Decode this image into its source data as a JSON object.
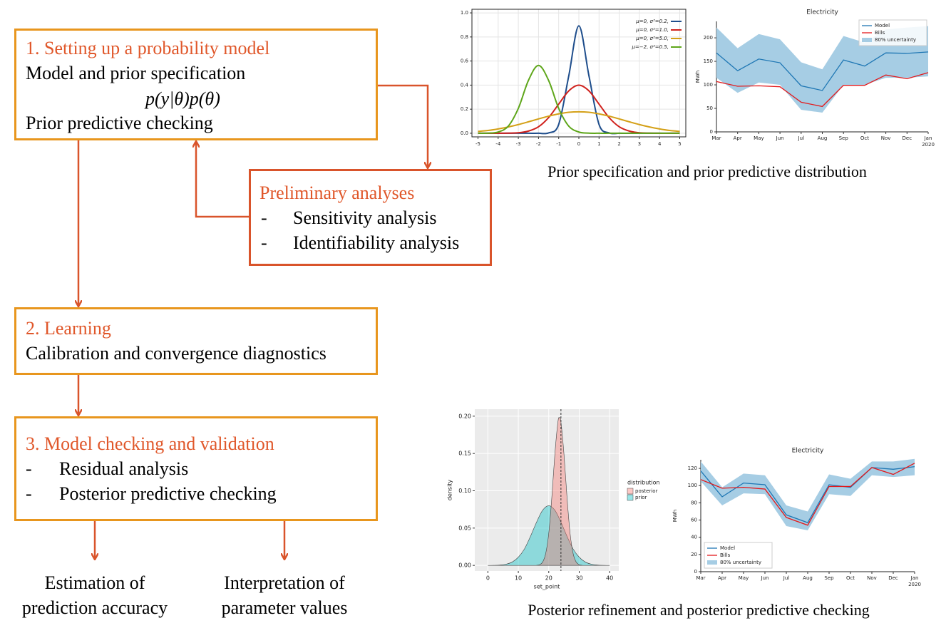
{
  "box1": {
    "title": "1. Setting up a probability model",
    "lines": [
      "Model and prior specification",
      "p(y|θ)p(θ)",
      "Prior predictive checking"
    ]
  },
  "preliminary": {
    "title": "Preliminary analyses",
    "bullet": "-",
    "items": [
      "Sensitivity analysis",
      "Identifiability analysis"
    ]
  },
  "box2": {
    "title": "2. Learning",
    "lines": [
      "Calibration and convergence diagnostics"
    ]
  },
  "box3": {
    "title": "3. Model checking and validation",
    "bullet": "-",
    "items": [
      "Residual analysis",
      "Posterior predictive checking"
    ]
  },
  "outputs": [
    {
      "lines": [
        "Estimation of",
        "prediction accuracy"
      ]
    },
    {
      "lines": [
        "Interpretation of",
        "parameter values"
      ]
    }
  ],
  "captions": [
    "Prior specification and prior predictive distribution",
    "Posterior refinement and posterior predictive checking"
  ],
  "charts": [
    {
      "type": "line",
      "x": [
        -5,
        -4.5,
        -4,
        -3.5,
        -3,
        -2.5,
        -2,
        -1.5,
        -1,
        -0.5,
        0,
        0.5,
        1,
        1.5,
        2,
        2.5,
        3,
        3.5,
        4,
        4.5,
        5
      ],
      "xlim": [
        -5.3,
        5.3
      ],
      "xticks": [
        -5,
        -4,
        -3,
        -2,
        -1,
        0,
        1,
        2,
        3,
        4,
        5
      ],
      "ylim": [
        -0.03,
        1.03
      ],
      "yticks": [
        {
          "value": 0,
          "label": "0.0"
        },
        {
          "value": 0.2,
          "label": "0.2"
        },
        {
          "value": 0.4,
          "label": "0.4"
        },
        {
          "value": 0.6,
          "label": "0.6"
        },
        {
          "value": 0.8,
          "label": "0.8"
        },
        {
          "value": 1,
          "label": "1.0"
        }
      ],
      "grid": true,
      "legend": "upper right",
      "series": [
        {
          "name": "μ=0,   σ²=0.2,",
          "color": "#1f4e8c",
          "values": [
            0,
            0,
            0,
            0,
            0,
            0,
            0,
            0.003,
            0.073,
            0.477,
            0.892,
            0.477,
            0.073,
            0.003,
            0,
            0,
            0,
            0,
            0,
            0,
            0
          ]
        },
        {
          "name": "μ=0,   σ²=1.0,",
          "color": "#d0211c",
          "values": [
            0,
            0,
            0,
            0.001,
            0.004,
            0.018,
            0.054,
            0.13,
            0.242,
            0.352,
            0.399,
            0.352,
            0.242,
            0.13,
            0.054,
            0.018,
            0.004,
            0.001,
            0,
            0,
            0
          ]
        },
        {
          "name": "μ=0,   σ²=5.0,",
          "color": "#d4a017",
          "values": [
            0.015,
            0.023,
            0.036,
            0.052,
            0.072,
            0.095,
            0.119,
            0.142,
            0.161,
            0.174,
            0.178,
            0.174,
            0.161,
            0.142,
            0.119,
            0.095,
            0.072,
            0.052,
            0.036,
            0.023,
            0.015
          ]
        },
        {
          "name": "μ=−2, σ²=0.5,",
          "color": "#5ea61a",
          "values": [
            0,
            0.001,
            0.01,
            0.059,
            0.207,
            0.439,
            0.564,
            0.439,
            0.207,
            0.059,
            0.01,
            0.001,
            0,
            0,
            0,
            0,
            0,
            0,
            0,
            0,
            0
          ]
        }
      ]
    },
    {
      "type": "band_line",
      "title": "Electricity",
      "categories": [
        "Mar",
        "Apr",
        "May",
        "Jun",
        "Jul",
        "Aug",
        "Sep",
        "Oct",
        "Nov",
        "Dec",
        "Jan"
      ],
      "year": "2020",
      "ylabel": "MWh",
      "ylim": [
        0,
        235
      ],
      "yticks": [
        0,
        50,
        100,
        150,
        200
      ],
      "grid": false,
      "legend": "upper right",
      "series": [
        {
          "name": "Model",
          "color": "#1f77b4",
          "values": [
            168,
            130,
            155,
            147,
            98,
            88,
            153,
            140,
            168,
            167,
            170
          ]
        },
        {
          "name": "Bills",
          "color": "#e31a1c",
          "values": [
            107,
            97,
            98,
            96,
            63,
            54,
            99,
            99,
            121,
            113,
            126
          ]
        }
      ],
      "band": {
        "name": "80% uncertainty",
        "color": "#a6cde4",
        "lower": [
          115,
          83,
          105,
          100,
          47,
          41,
          100,
          100,
          115,
          115,
          118
        ],
        "upper": [
          222,
          178,
          208,
          197,
          148,
          133,
          204,
          190,
          218,
          222,
          225
        ]
      }
    },
    {
      "type": "area",
      "xlabel": "set_point",
      "ylabel": "density",
      "xlim": [
        -4.3,
        43
      ],
      "xticks": [
        0,
        10,
        20,
        30,
        40
      ],
      "ylim": [
        -0.0075,
        0.2094
      ],
      "yticks": [
        {
          "value": 0,
          "label": "0.00"
        },
        {
          "value": 0.05,
          "label": "0.05"
        },
        {
          "value": 0.1,
          "label": "0.10"
        },
        {
          "value": 0.15,
          "label": "0.15"
        },
        {
          "value": 0.2,
          "label": "0.20"
        }
      ],
      "vline": 24,
      "grid": true,
      "legend": "right",
      "legend_title": "distribution",
      "series": [
        {
          "name": "posterior",
          "color": "#f8766d",
          "x": [
            16,
            17,
            18,
            19,
            20,
            21,
            22,
            23,
            23.5,
            24,
            25,
            26,
            27,
            28,
            29,
            30,
            31
          ],
          "values": [
            0.0001,
            0.001,
            0.0045,
            0.016,
            0.043,
            0.091,
            0.149,
            0.192,
            0.198,
            0.192,
            0.149,
            0.091,
            0.043,
            0.016,
            0.0045,
            0.001,
            0.0001
          ]
        },
        {
          "name": "prior",
          "color": "#00bfc4",
          "x": [
            0,
            2,
            4,
            6,
            8,
            10,
            12,
            14,
            16,
            18,
            20,
            22,
            24,
            26,
            28,
            30,
            32,
            34,
            36,
            38,
            40
          ],
          "values": [
            0,
            0.0001,
            0.0005,
            0.0016,
            0.0045,
            0.011,
            0.022,
            0.039,
            0.058,
            0.074,
            0.08,
            0.074,
            0.058,
            0.039,
            0.022,
            0.011,
            0.0045,
            0.0016,
            0.0005,
            0.0001,
            0
          ]
        }
      ]
    },
    {
      "type": "band_line",
      "title": "Electricity",
      "categories": [
        "Mar",
        "Apr",
        "May",
        "Jun",
        "Jul",
        "Aug",
        "Sep",
        "Oct",
        "Nov",
        "Dec",
        "Jan"
      ],
      "year": "2020",
      "ylabel": "MWh",
      "ylim": [
        0,
        130
      ],
      "yticks": [
        0,
        20,
        40,
        60,
        80,
        100,
        120
      ],
      "grid": false,
      "legend": "lower left",
      "series": [
        {
          "name": "Model",
          "color": "#1f77b4",
          "values": [
            117,
            87,
            103,
            101,
            66,
            57,
            101,
            98,
            121,
            119,
            122
          ]
        },
        {
          "name": "Bills",
          "color": "#e31a1c",
          "values": [
            107,
            97,
            98,
            96,
            63,
            54,
            99,
            99,
            121,
            113,
            126
          ]
        }
      ],
      "band": {
        "name": "80% uncertainty",
        "color": "#a6cde4",
        "lower": [
          105,
          77,
          91,
          90,
          53,
          48,
          90,
          88,
          112,
          110,
          112
        ],
        "upper": [
          128,
          98,
          114,
          112,
          77,
          70,
          113,
          108,
          128,
          128,
          131
        ]
      }
    }
  ]
}
